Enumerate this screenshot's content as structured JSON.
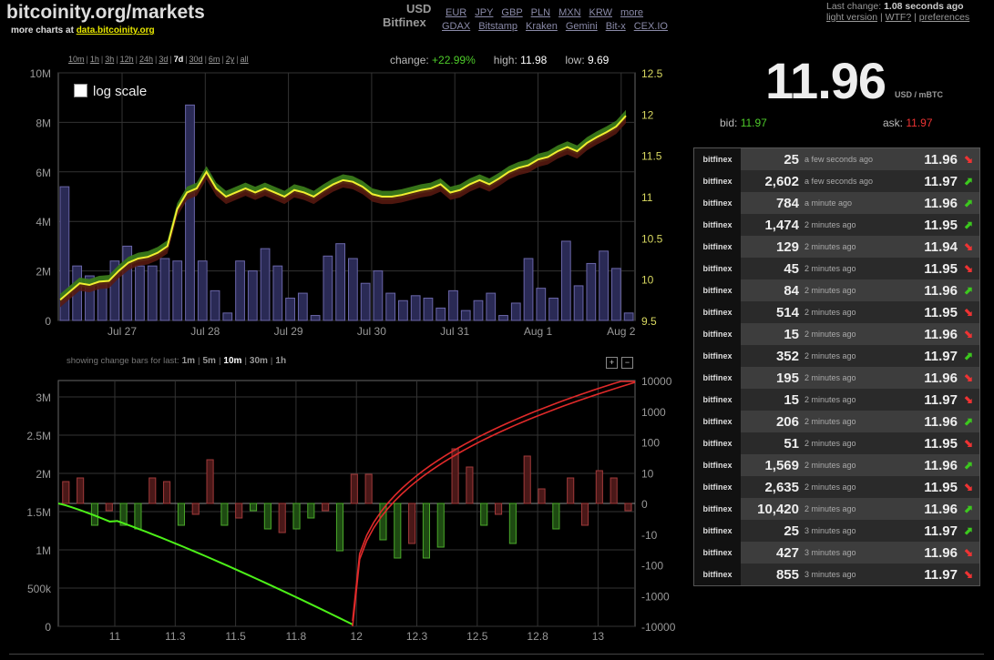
{
  "header": {
    "site_title": "bitcoinity.org/markets",
    "more_charts_prefix": "more charts at ",
    "more_charts_link": "data.bitcoinity.org",
    "currency_selected": "USD",
    "currencies": [
      "EUR",
      "JPY",
      "GBP",
      "PLN",
      "MXN",
      "KRW",
      "more"
    ],
    "exchange_selected": "Bitfinex",
    "exchanges": [
      "GDAX",
      "Bitstamp",
      "Kraken",
      "Gemini",
      "Bit-x",
      "CEX.IO"
    ],
    "last_change_label": "Last change:",
    "last_change_value": "1.08 seconds ago",
    "links": [
      "light version",
      "WTF?",
      "preferences"
    ]
  },
  "range_selector": {
    "options": [
      "10m",
      "1h",
      "3h",
      "12h",
      "24h",
      "3d",
      "7d",
      "30d",
      "6m",
      "2y",
      "all"
    ],
    "active": "7d"
  },
  "stats": {
    "change_label": "change:",
    "change_value": "+22.99%",
    "high_label": "high:",
    "high_value": "11.98",
    "low_label": "low:",
    "low_value": "9.69"
  },
  "log_scale_label": "log scale",
  "bars_selector": {
    "label": "showing change bars for last:",
    "options": [
      "1m",
      "5m",
      "10m",
      "30m",
      "1h"
    ],
    "active": "10m",
    "zoom_in": "+",
    "zoom_out": "−"
  },
  "price_panel": {
    "price": "11.96",
    "unit": "USD / mBTC",
    "bid_label": "bid:",
    "bid_value": "11.97",
    "ask_label": "ask:",
    "ask_value": "11.97"
  },
  "trades": [
    {
      "exchange": "bitfinex",
      "amount": "25",
      "time": "a few seconds ago",
      "price": "11.96",
      "dir": "down"
    },
    {
      "exchange": "bitfinex",
      "amount": "2,602",
      "time": "a few seconds ago",
      "price": "11.97",
      "dir": "up"
    },
    {
      "exchange": "bitfinex",
      "amount": "784",
      "time": "a minute ago",
      "price": "11.96",
      "dir": "up"
    },
    {
      "exchange": "bitfinex",
      "amount": "1,474",
      "time": "2 minutes ago",
      "price": "11.95",
      "dir": "up"
    },
    {
      "exchange": "bitfinex",
      "amount": "129",
      "time": "2 minutes ago",
      "price": "11.94",
      "dir": "down"
    },
    {
      "exchange": "bitfinex",
      "amount": "45",
      "time": "2 minutes ago",
      "price": "11.95",
      "dir": "down"
    },
    {
      "exchange": "bitfinex",
      "amount": "84",
      "time": "2 minutes ago",
      "price": "11.96",
      "dir": "up"
    },
    {
      "exchange": "bitfinex",
      "amount": "514",
      "time": "2 minutes ago",
      "price": "11.95",
      "dir": "down"
    },
    {
      "exchange": "bitfinex",
      "amount": "15",
      "time": "2 minutes ago",
      "price": "11.96",
      "dir": "down"
    },
    {
      "exchange": "bitfinex",
      "amount": "352",
      "time": "2 minutes ago",
      "price": "11.97",
      "dir": "up"
    },
    {
      "exchange": "bitfinex",
      "amount": "195",
      "time": "2 minutes ago",
      "price": "11.96",
      "dir": "down"
    },
    {
      "exchange": "bitfinex",
      "amount": "15",
      "time": "2 minutes ago",
      "price": "11.97",
      "dir": "down"
    },
    {
      "exchange": "bitfinex",
      "amount": "206",
      "time": "2 minutes ago",
      "price": "11.96",
      "dir": "up"
    },
    {
      "exchange": "bitfinex",
      "amount": "51",
      "time": "2 minutes ago",
      "price": "11.95",
      "dir": "down"
    },
    {
      "exchange": "bitfinex",
      "amount": "1,569",
      "time": "2 minutes ago",
      "price": "11.96",
      "dir": "up"
    },
    {
      "exchange": "bitfinex",
      "amount": "2,635",
      "time": "2 minutes ago",
      "price": "11.95",
      "dir": "down"
    },
    {
      "exchange": "bitfinex",
      "amount": "10,420",
      "time": "2 minutes ago",
      "price": "11.96",
      "dir": "up"
    },
    {
      "exchange": "bitfinex",
      "amount": "25",
      "time": "3 minutes ago",
      "price": "11.97",
      "dir": "up"
    },
    {
      "exchange": "bitfinex",
      "amount": "427",
      "time": "3 minutes ago",
      "price": "11.96",
      "dir": "down"
    },
    {
      "exchange": "bitfinex",
      "amount": "855",
      "time": "3 minutes ago",
      "price": "11.97",
      "dir": "down"
    }
  ],
  "chart_data": [
    {
      "type": "line",
      "xlabels": [
        "Jul 27",
        "Jul 28",
        "Jul 29",
        "Jul 30",
        "Jul 31",
        "Aug 1",
        "Aug 2"
      ],
      "y_left_ticks": [
        "10M",
        "8M",
        "6M",
        "4M",
        "2M",
        "0"
      ],
      "y_right_ticks": [
        "12.5",
        "12",
        "11.5",
        "11",
        "10.5",
        "10",
        "9.5"
      ],
      "y_left_range": [
        0,
        10000000
      ],
      "y_right_range": [
        9.5,
        12.5
      ],
      "volume": [
        5.4,
        2.2,
        1.8,
        1.6,
        2.4,
        3.0,
        2.2,
        2.2,
        2.5,
        2.4,
        8.7,
        2.4,
        1.2,
        0.3,
        2.4,
        2.0,
        2.9,
        2.2,
        0.9,
        1.1,
        0.2,
        2.6,
        3.1,
        2.5,
        1.5,
        2.0,
        1.1,
        0.8,
        1.0,
        0.9,
        0.5,
        1.2,
        0.4,
        0.8,
        1.1,
        0.2,
        0.7,
        2.5,
        1.3,
        0.9,
        3.2,
        1.4,
        2.3,
        2.8,
        2.1,
        0.3
      ],
      "price": [
        9.75,
        9.85,
        9.95,
        9.93,
        9.97,
        9.98,
        10.1,
        10.2,
        10.25,
        10.27,
        10.32,
        10.4,
        10.85,
        11.05,
        11.1,
        11.3,
        11.1,
        11.0,
        11.05,
        11.1,
        11.05,
        11.1,
        11.05,
        11.0,
        11.08,
        11.05,
        11.0,
        11.08,
        11.15,
        11.2,
        11.18,
        11.12,
        11.03,
        11.0,
        11.0,
        11.02,
        11.05,
        11.08,
        11.1,
        11.15,
        11.05,
        11.08,
        11.15,
        11.2,
        11.15,
        11.22,
        11.3,
        11.35,
        11.38,
        11.45,
        11.48,
        11.55,
        11.6,
        11.55,
        11.65,
        11.72,
        11.78,
        11.85,
        11.98
      ]
    },
    {
      "type": "bar",
      "xlabels": [
        "11",
        "11.3",
        "11.5",
        "11.8",
        "12",
        "12.3",
        "12.5",
        "12.8",
        "13"
      ],
      "y_left_ticks": [
        "3M",
        "2.5M",
        "2M",
        "1.5M",
        "1M",
        "500k",
        "0"
      ],
      "y_right_ticks": [
        "10000",
        "1000",
        "100",
        "10",
        "0",
        "-10",
        "-100",
        "-1000",
        "-10000"
      ],
      "change_bars": [
        3,
        3.5,
        -3,
        -1,
        -3,
        -3.5,
        3.5,
        3,
        -3,
        -1.5,
        6,
        -3,
        -2,
        -1,
        -3.5,
        -4,
        -3.5,
        -2,
        -1,
        -6.5,
        4,
        4,
        -5,
        -7.5,
        -5.5,
        -7.5,
        -6,
        7.5,
        5,
        -3,
        -1.5,
        -5.5,
        6.5,
        2,
        -3.5,
        3.5,
        -3,
        4.5,
        3.5,
        -1
      ],
      "buy_curve_end": 10000,
      "sell_curve_end": -10000
    }
  ]
}
